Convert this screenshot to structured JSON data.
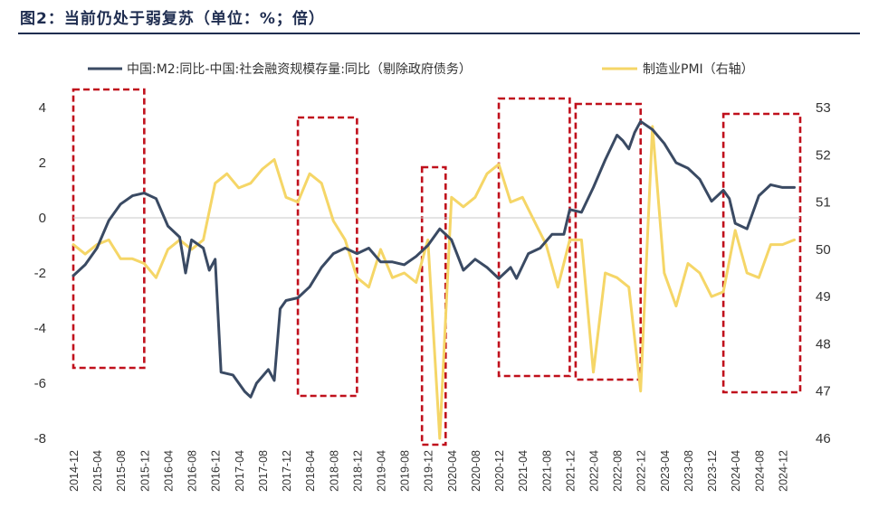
{
  "figure": {
    "title": "图2：当前仍处于弱复苏（单位：%；倍）"
  },
  "chart_data": {
    "type": "line",
    "title": "图2：当前仍处于弱复苏（单位：%；倍）",
    "xlabel": "",
    "ylabel": "",
    "y_left_lim": [
      -8,
      4
    ],
    "y_left_ticks": [
      -8,
      -6,
      -4,
      -2,
      0,
      2,
      4
    ],
    "y_right_lim": [
      46,
      53
    ],
    "y_right_ticks": [
      46,
      47,
      48,
      49,
      50,
      51,
      52,
      53
    ],
    "x_tick_labels": [
      "2014-12",
      "2015-04",
      "2015-08",
      "2015-12",
      "2016-04",
      "2016-08",
      "2016-12",
      "2017-04",
      "2017-08",
      "2017-12",
      "2018-04",
      "2018-08",
      "2018-12",
      "2019-04",
      "2019-08",
      "2019-12",
      "2020-04",
      "2020-08",
      "2020-12",
      "2021-04",
      "2021-08",
      "2021-12",
      "2022-04",
      "2022-08",
      "2022-12",
      "2023-04",
      "2023-08",
      "2023-12",
      "2024-04",
      "2024-08",
      "2024-12"
    ],
    "legend_position": "top",
    "grid": false,
    "colors": {
      "m2_series": "#3a4a63",
      "pmi_series": "#f5d667",
      "box": "#c0101c",
      "zero_line": "#c8c8c8"
    },
    "series": [
      {
        "name": "中国:M2:同比-中国:社会融资规模存量:同比（剔除政府债务）",
        "axis": "left",
        "points": [
          [
            "2014-12",
            -2.1
          ],
          [
            "2015-02",
            -1.7
          ],
          [
            "2015-04",
            -1.1
          ],
          [
            "2015-06",
            -0.1
          ],
          [
            "2015-08",
            0.5
          ],
          [
            "2015-10",
            0.8
          ],
          [
            "2015-12",
            0.9
          ],
          [
            "2016-02",
            0.7
          ],
          [
            "2016-04",
            -0.3
          ],
          [
            "2016-06",
            -0.7
          ],
          [
            "2016-07",
            -2.0
          ],
          [
            "2016-08",
            -0.8
          ],
          [
            "2016-10",
            -1.1
          ],
          [
            "2016-11",
            -1.9
          ],
          [
            "2016-12",
            -1.5
          ],
          [
            "2017-01",
            -5.6
          ],
          [
            "2017-03",
            -5.7
          ],
          [
            "2017-05",
            -6.3
          ],
          [
            "2017-06",
            -6.5
          ],
          [
            "2017-07",
            -6.0
          ],
          [
            "2017-09",
            -5.5
          ],
          [
            "2017-10",
            -5.9
          ],
          [
            "2017-11",
            -3.3
          ],
          [
            "2017-12",
            -3.0
          ],
          [
            "2018-02",
            -2.9
          ],
          [
            "2018-04",
            -2.5
          ],
          [
            "2018-06",
            -1.8
          ],
          [
            "2018-08",
            -1.3
          ],
          [
            "2018-10",
            -1.1
          ],
          [
            "2018-12",
            -1.3
          ],
          [
            "2019-02",
            -1.1
          ],
          [
            "2019-04",
            -1.6
          ],
          [
            "2019-06",
            -1.6
          ],
          [
            "2019-08",
            -1.7
          ],
          [
            "2019-10",
            -1.4
          ],
          [
            "2019-12",
            -1.0
          ],
          [
            "2020-02",
            -0.4
          ],
          [
            "2020-04",
            -0.8
          ],
          [
            "2020-06",
            -1.9
          ],
          [
            "2020-08",
            -1.5
          ],
          [
            "2020-10",
            -1.8
          ],
          [
            "2020-12",
            -2.2
          ],
          [
            "2021-02",
            -1.8
          ],
          [
            "2021-03",
            -2.2
          ],
          [
            "2021-05",
            -1.3
          ],
          [
            "2021-07",
            -1.1
          ],
          [
            "2021-09",
            -0.6
          ],
          [
            "2021-11",
            -0.6
          ],
          [
            "2021-12",
            0.3
          ],
          [
            "2022-02",
            0.2
          ],
          [
            "2022-04",
            1.1
          ],
          [
            "2022-06",
            2.1
          ],
          [
            "2022-08",
            3.0
          ],
          [
            "2022-09",
            2.8
          ],
          [
            "2022-10",
            2.5
          ],
          [
            "2022-11",
            3.1
          ],
          [
            "2022-12",
            3.5
          ],
          [
            "2023-02",
            3.2
          ],
          [
            "2023-04",
            2.7
          ],
          [
            "2023-06",
            2.0
          ],
          [
            "2023-08",
            1.8
          ],
          [
            "2023-10",
            1.4
          ],
          [
            "2023-12",
            0.6
          ],
          [
            "2024-02",
            1.0
          ],
          [
            "2024-03",
            0.7
          ],
          [
            "2024-04",
            -0.2
          ],
          [
            "2024-06",
            -0.4
          ],
          [
            "2024-08",
            0.8
          ],
          [
            "2024-10",
            1.2
          ],
          [
            "2024-12",
            1.1
          ],
          [
            "2025-02",
            1.1
          ]
        ]
      },
      {
        "name": "制造业PMI（右轴）",
        "axis": "right",
        "points": [
          [
            "2014-12",
            50.1
          ],
          [
            "2015-02",
            49.9
          ],
          [
            "2015-04",
            50.1
          ],
          [
            "2015-06",
            50.2
          ],
          [
            "2015-08",
            49.8
          ],
          [
            "2015-10",
            49.8
          ],
          [
            "2015-12",
            49.7
          ],
          [
            "2016-02",
            49.4
          ],
          [
            "2016-04",
            50.0
          ],
          [
            "2016-06",
            50.2
          ],
          [
            "2016-08",
            50.0
          ],
          [
            "2016-10",
            50.2
          ],
          [
            "2016-12",
            51.4
          ],
          [
            "2017-02",
            51.6
          ],
          [
            "2017-04",
            51.3
          ],
          [
            "2017-06",
            51.4
          ],
          [
            "2017-08",
            51.7
          ],
          [
            "2017-10",
            51.9
          ],
          [
            "2017-12",
            51.1
          ],
          [
            "2018-02",
            51.0
          ],
          [
            "2018-04",
            51.6
          ],
          [
            "2018-06",
            51.4
          ],
          [
            "2018-08",
            50.6
          ],
          [
            "2018-10",
            50.2
          ],
          [
            "2018-12",
            49.4
          ],
          [
            "2019-02",
            49.2
          ],
          [
            "2019-04",
            50.0
          ],
          [
            "2019-06",
            49.4
          ],
          [
            "2019-08",
            49.5
          ],
          [
            "2019-10",
            49.3
          ],
          [
            "2019-12",
            50.2
          ],
          [
            "2020-02",
            46.0
          ],
          [
            "2020-04",
            51.1
          ],
          [
            "2020-06",
            50.9
          ],
          [
            "2020-08",
            51.1
          ],
          [
            "2020-10",
            51.6
          ],
          [
            "2020-12",
            51.8
          ],
          [
            "2021-02",
            51.0
          ],
          [
            "2021-04",
            51.1
          ],
          [
            "2021-06",
            50.6
          ],
          [
            "2021-08",
            50.1
          ],
          [
            "2021-10",
            49.2
          ],
          [
            "2021-12",
            50.2
          ],
          [
            "2022-02",
            50.2
          ],
          [
            "2022-04",
            47.4
          ],
          [
            "2022-06",
            49.5
          ],
          [
            "2022-08",
            49.4
          ],
          [
            "2022-10",
            49.2
          ],
          [
            "2022-12",
            47.0
          ],
          [
            "2023-02",
            52.6
          ],
          [
            "2023-04",
            49.5
          ],
          [
            "2023-06",
            48.8
          ],
          [
            "2023-08",
            49.7
          ],
          [
            "2023-10",
            49.5
          ],
          [
            "2023-12",
            49.0
          ],
          [
            "2024-02",
            49.1
          ],
          [
            "2024-04",
            50.4
          ],
          [
            "2024-06",
            49.5
          ],
          [
            "2024-08",
            49.4
          ],
          [
            "2024-10",
            50.1
          ],
          [
            "2024-12",
            50.1
          ],
          [
            "2025-02",
            50.2
          ]
        ]
      }
    ],
    "highlight_boxes": [
      [
        "2014-12",
        "2015-12"
      ],
      [
        "2018-02",
        "2018-12"
      ],
      [
        "2019-11",
        "2020-03"
      ],
      [
        "2020-12",
        "2021-12"
      ],
      [
        "2022-01",
        "2022-12"
      ],
      [
        "2024-02",
        "2025-03"
      ]
    ]
  }
}
